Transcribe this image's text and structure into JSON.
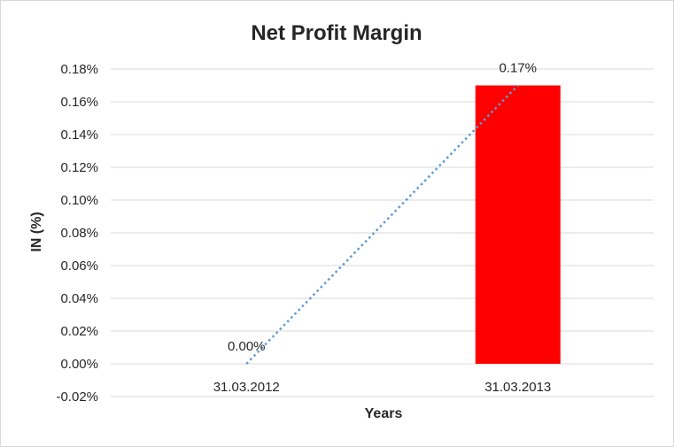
{
  "chart_data": {
    "type": "bar",
    "title": "Net Profit Margin",
    "xlabel": "Years",
    "ylabel": "IN (%)",
    "categories": [
      "31.03.2012",
      "31.03.2013"
    ],
    "values": [
      0.0,
      0.17
    ],
    "data_labels": [
      "0.00%",
      "0.17%"
    ],
    "ylim": [
      -0.02,
      0.18
    ],
    "yticks": [
      -0.02,
      0.0,
      0.02,
      0.04,
      0.06,
      0.08,
      0.1,
      0.12,
      0.14,
      0.16,
      0.18
    ],
    "ytick_labels": [
      "-0.02%",
      "0.00%",
      "0.02%",
      "0.04%",
      "0.06%",
      "0.08%",
      "0.10%",
      "0.12%",
      "0.14%",
      "0.16%",
      "0.18%"
    ],
    "grid": true,
    "legend": "none",
    "trendline": "linear, dotted",
    "colors": {
      "bar": "#ff0000",
      "trendline": "#5b9bd5",
      "grid": "#d9d9d9",
      "text": "#262626"
    }
  }
}
